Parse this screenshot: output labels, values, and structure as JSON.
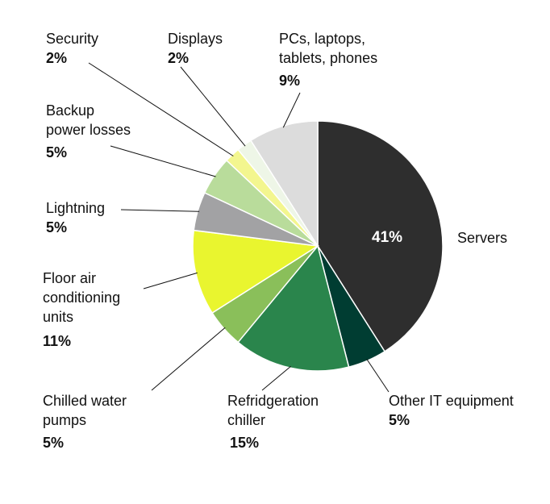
{
  "chart_data": {
    "type": "pie",
    "title": "",
    "start": "top, clockwise",
    "slices": [
      {
        "label": "Servers",
        "value": 41,
        "display": "41%",
        "color": "#2e2e2e"
      },
      {
        "label": "Other IT equipment",
        "value": 5,
        "display": "5%",
        "color": "#003d32"
      },
      {
        "label": "Refridgeration\nchiller",
        "value": 15,
        "display": "15%",
        "color": "#2a854c"
      },
      {
        "label": "Chilled water\npumps",
        "value": 5,
        "display": "5%",
        "color": "#8abf5a"
      },
      {
        "label": "Floor air\nconditioning\nunits",
        "value": 11,
        "display": "11%",
        "color": "#e9f52f"
      },
      {
        "label": "Lightning",
        "value": 5,
        "display": "5%",
        "color": "#a2a2a4"
      },
      {
        "label": "Backup\npower losses",
        "value": 5,
        "display": "5%",
        "color": "#b9dc9b"
      },
      {
        "label": "Security",
        "value": 2,
        "display": "2%",
        "color": "#f3f68f"
      },
      {
        "label": "Displays",
        "value": 2,
        "display": "2%",
        "color": "#eef6e7"
      },
      {
        "label": "PCs, laptops,\ntablets, phones",
        "value": 9,
        "display": "9%",
        "color": "#dcdcdc"
      }
    ]
  }
}
